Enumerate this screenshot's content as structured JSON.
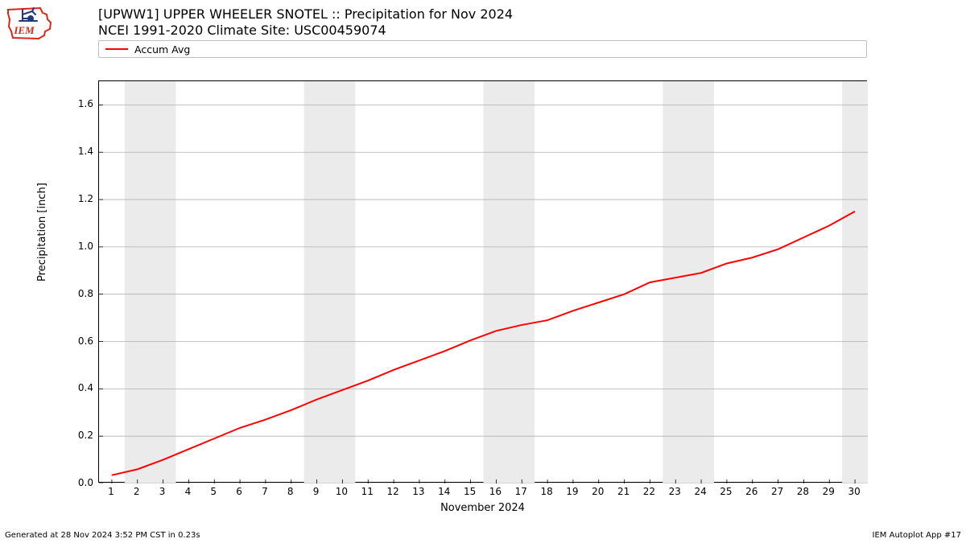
{
  "title_line1": "[UPWW1] UPPER WHEELER SNOTEL :: Precipitation for Nov 2024",
  "title_line2": "NCEI 1991-2020 Climate Site: USC00459074",
  "legend_label": "Accum Avg",
  "legend_color": "#ff0000",
  "ylabel": "Precipitation [inch]",
  "xlabel": "November 2024",
  "footer_left": "Generated at 28 Nov 2024 3:52 PM CST in 0.23s",
  "footer_right": "IEM Autoplot App #17",
  "chart": {
    "type": "line",
    "background_color": "#ffffff",
    "weekend_band_color": "#ebebeb",
    "grid_color": "#b0b0b0",
    "axis_color": "#000000",
    "ylim": [
      0.0,
      1.7
    ],
    "yticks": [
      0.0,
      0.2,
      0.4,
      0.6,
      0.8,
      1.0,
      1.2,
      1.4,
      1.6
    ],
    "xlim": [
      0.5,
      30.5
    ],
    "xticks": [
      1,
      2,
      3,
      4,
      5,
      6,
      7,
      8,
      9,
      10,
      11,
      12,
      13,
      14,
      15,
      16,
      17,
      18,
      19,
      20,
      21,
      22,
      23,
      24,
      25,
      26,
      27,
      28,
      29,
      30
    ],
    "weekend_bands": [
      [
        1.5,
        3.5
      ],
      [
        8.5,
        10.5
      ],
      [
        15.5,
        17.5
      ],
      [
        22.5,
        24.5
      ],
      [
        29.5,
        30.5
      ]
    ],
    "series": {
      "color": "#ff0000",
      "line_width": 2,
      "x": [
        1,
        2,
        3,
        4,
        5,
        6,
        7,
        8,
        9,
        10,
        11,
        12,
        13,
        14,
        15,
        16,
        17,
        18,
        19,
        20,
        21,
        22,
        23,
        24,
        25,
        26,
        27,
        28,
        29,
        30
      ],
      "y": [
        0.035,
        0.06,
        0.1,
        0.145,
        0.19,
        0.235,
        0.27,
        0.31,
        0.355,
        0.395,
        0.435,
        0.48,
        0.52,
        0.56,
        0.605,
        0.645,
        0.67,
        0.69,
        0.73,
        0.765,
        0.8,
        0.85,
        0.87,
        0.89,
        0.93,
        0.955,
        0.99,
        1.04,
        1.09,
        1.15
      ]
    }
  },
  "logo": {
    "outline_color": "#d9261c",
    "text": "IEM",
    "text_color": "#d9261c",
    "glyph_color": "#223a79"
  }
}
